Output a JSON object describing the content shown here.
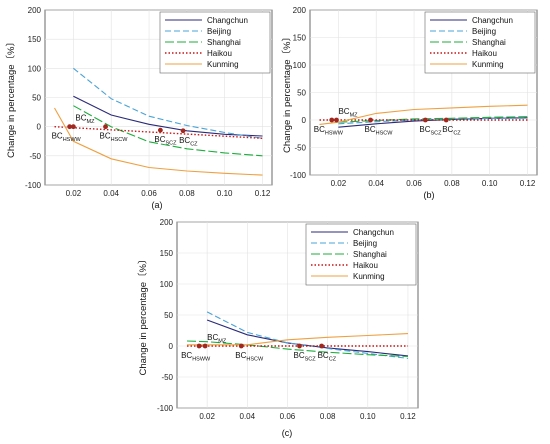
{
  "figure": {
    "panel_a_caption": "(a)",
    "panel_b_caption": "(b)",
    "panel_c_caption": "(c)"
  },
  "colors": {
    "Changchun": "#2a2a7a",
    "Beijing": "#4aa3d8",
    "Shanghai": "#1cae3c",
    "Haikou": "#c81414",
    "Kunming": "#eea040",
    "marker": "#a0281e"
  },
  "chart_data": [
    {
      "type": "line",
      "panel": "(a)",
      "ylabel": "Change in percentage〔%〕",
      "xlim": [
        0.005,
        0.125
      ],
      "ylim": [
        -100,
        200
      ],
      "xticks": [
        "0.02",
        "0.04",
        "0.06",
        "0.08",
        "0.10",
        "0.12"
      ],
      "yticks": [
        "-100",
        "-50",
        "0",
        "50",
        "100",
        "150",
        "200"
      ],
      "grid": true,
      "legend_position": "top-right",
      "series": [
        {
          "name": "Changchun",
          "style": "solid",
          "points": [
            [
              0.02,
              52
            ],
            [
              0.04,
              20
            ],
            [
              0.06,
              4
            ],
            [
              0.08,
              -7
            ],
            [
              0.1,
              -13
            ],
            [
              0.12,
              -16
            ]
          ]
        },
        {
          "name": "Beijing",
          "style": "dashed",
          "points": [
            [
              0.02,
              100
            ],
            [
              0.04,
              48
            ],
            [
              0.06,
              18
            ],
            [
              0.08,
              2
            ],
            [
              0.1,
              -10
            ],
            [
              0.12,
              -20
            ]
          ]
        },
        {
          "name": "Shanghai",
          "style": "longdash",
          "points": [
            [
              0.02,
              36
            ],
            [
              0.04,
              0
            ],
            [
              0.06,
              -26
            ],
            [
              0.08,
              -38
            ],
            [
              0.1,
              -45
            ],
            [
              0.12,
              -50
            ]
          ]
        },
        {
          "name": "Haikou",
          "style": "dotted",
          "points": [
            [
              0.01,
              0
            ],
            [
              0.12,
              -20
            ]
          ]
        },
        {
          "name": "Kunming",
          "style": "solid",
          "points": [
            [
              0.01,
              32
            ],
            [
              0.02,
              -25
            ],
            [
              0.04,
              -55
            ],
            [
              0.06,
              -70
            ],
            [
              0.08,
              -76
            ],
            [
              0.1,
              -80
            ],
            [
              0.12,
              -83
            ]
          ]
        }
      ],
      "annotations": [
        {
          "label": "BC",
          "sub": "HSWW",
          "x": 0.018,
          "y": 0
        },
        {
          "label": "BC",
          "sub": "MZ",
          "x": 0.02,
          "y": 0
        },
        {
          "label": "BC",
          "sub": "HSCW",
          "x": 0.037,
          "y": 0
        },
        {
          "label": "BC",
          "sub": "SCZ",
          "x": 0.066,
          "y": -6
        },
        {
          "label": "BC",
          "sub": "CZ",
          "x": 0.078,
          "y": -7
        }
      ]
    },
    {
      "type": "line",
      "panel": "(b)",
      "ylabel": "Change in percentage〔%〕",
      "xlim": [
        0.005,
        0.125
      ],
      "ylim": [
        -100,
        200
      ],
      "xticks": [
        "0.02",
        "0.04",
        "0.06",
        "0.08",
        "0.10",
        "0.12"
      ],
      "yticks": [
        "-100",
        "-50",
        "0",
        "50",
        "100",
        "150",
        "200"
      ],
      "grid": true,
      "legend_position": "top-right",
      "series": [
        {
          "name": "Changchun",
          "style": "solid",
          "points": [
            [
              0.02,
              -13
            ],
            [
              0.04,
              -7
            ],
            [
              0.06,
              -2
            ],
            [
              0.08,
              1
            ],
            [
              0.1,
              3
            ],
            [
              0.12,
              4
            ]
          ]
        },
        {
          "name": "Beijing",
          "style": "dashed",
          "points": [
            [
              0.02,
              -7
            ],
            [
              0.04,
              -3
            ],
            [
              0.06,
              0
            ],
            [
              0.08,
              2
            ],
            [
              0.1,
              3
            ],
            [
              0.12,
              3
            ]
          ]
        },
        {
          "name": "Shanghai",
          "style": "longdash",
          "points": [
            [
              0.02,
              -4
            ],
            [
              0.04,
              -1
            ],
            [
              0.06,
              2
            ],
            [
              0.08,
              3
            ],
            [
              0.1,
              5
            ],
            [
              0.12,
              6
            ]
          ]
        },
        {
          "name": "Haikou",
          "style": "dotted",
          "points": [
            [
              0.01,
              0
            ],
            [
              0.12,
              0
            ]
          ]
        },
        {
          "name": "Kunming",
          "style": "solid",
          "points": [
            [
              0.01,
              -8
            ],
            [
              0.02,
              -4
            ],
            [
              0.04,
              12
            ],
            [
              0.06,
              19
            ],
            [
              0.08,
              22
            ],
            [
              0.1,
              25
            ],
            [
              0.12,
              27
            ]
          ]
        }
      ],
      "annotations": [
        {
          "label": "BC",
          "sub": "HSWW",
          "x": 0.0165,
          "y": 0
        },
        {
          "label": "BC",
          "sub": "MZ",
          "x": 0.019,
          "y": 0
        },
        {
          "label": "BC",
          "sub": "HSCW",
          "x": 0.037,
          "y": 0
        },
        {
          "label": "BC",
          "sub": "SCZ",
          "x": 0.066,
          "y": 0
        },
        {
          "label": "BC",
          "sub": "CZ",
          "x": 0.077,
          "y": 0
        }
      ]
    },
    {
      "type": "line",
      "panel": "(c)",
      "ylabel": "Change in percentage〔%〕",
      "xlim": [
        0.005,
        0.125
      ],
      "ylim": [
        -100,
        200
      ],
      "xticks": [
        "0.02",
        "0.04",
        "0.06",
        "0.08",
        "0.10",
        "0.12"
      ],
      "yticks": [
        "-100",
        "-50",
        "0",
        "50",
        "100",
        "150",
        "200"
      ],
      "grid": true,
      "legend_position": "top-right",
      "series": [
        {
          "name": "Changchun",
          "style": "solid",
          "points": [
            [
              0.02,
              42
            ],
            [
              0.04,
              18
            ],
            [
              0.06,
              5
            ],
            [
              0.08,
              -3
            ],
            [
              0.1,
              -9
            ],
            [
              0.12,
              -16
            ]
          ]
        },
        {
          "name": "Beijing",
          "style": "dashed",
          "points": [
            [
              0.02,
              55
            ],
            [
              0.04,
              22
            ],
            [
              0.06,
              5
            ],
            [
              0.08,
              -4
            ],
            [
              0.1,
              -12
            ],
            [
              0.12,
              -20
            ]
          ]
        },
        {
          "name": "Shanghai",
          "style": "longdash",
          "points": [
            [
              0.01,
              8
            ],
            [
              0.02,
              7
            ],
            [
              0.04,
              2
            ],
            [
              0.06,
              -5
            ],
            [
              0.08,
              -10
            ],
            [
              0.1,
              -14
            ],
            [
              0.12,
              -17
            ]
          ]
        },
        {
          "name": "Haikou",
          "style": "dotted",
          "points": [
            [
              0.01,
              0
            ],
            [
              0.12,
              0
            ]
          ]
        },
        {
          "name": "Kunming",
          "style": "solid",
          "points": [
            [
              0.01,
              2
            ],
            [
              0.04,
              2
            ],
            [
              0.06,
              10
            ],
            [
              0.08,
              14
            ],
            [
              0.1,
              17
            ],
            [
              0.12,
              20
            ]
          ]
        }
      ],
      "annotations": [
        {
          "label": "BC",
          "sub": "HSWW",
          "x": 0.016,
          "y": 0
        },
        {
          "label": "BC",
          "sub": "MZ",
          "x": 0.019,
          "y": 0
        },
        {
          "label": "BC",
          "sub": "HSCW",
          "x": 0.037,
          "y": 0
        },
        {
          "label": "BC",
          "sub": "SCZ",
          "x": 0.066,
          "y": 0
        },
        {
          "label": "BC",
          "sub": "CZ",
          "x": 0.077,
          "y": 0
        }
      ]
    }
  ]
}
